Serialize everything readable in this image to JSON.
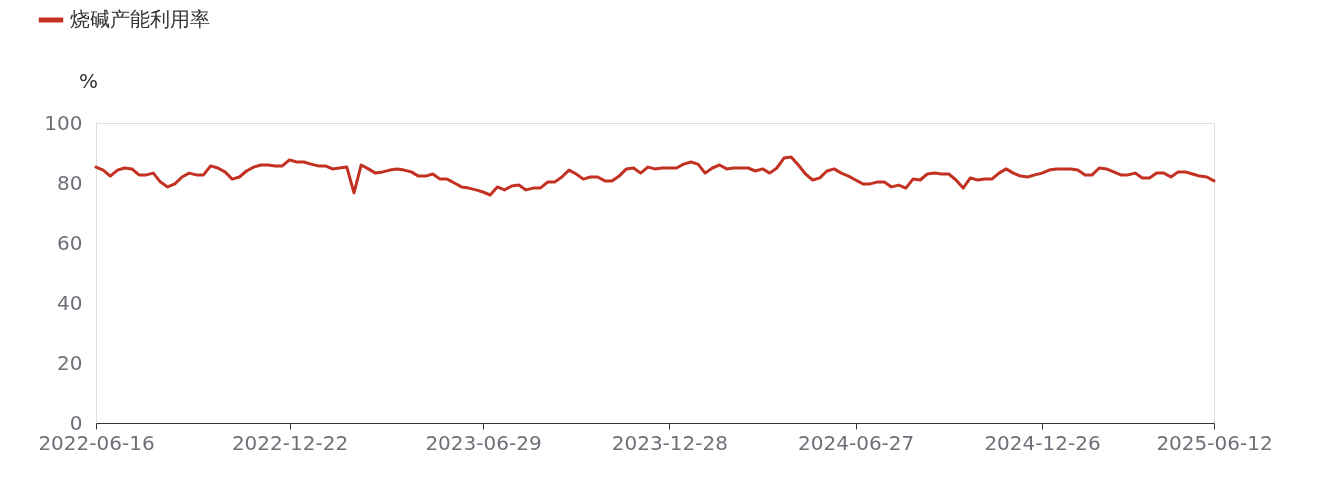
{
  "chart_data": {
    "type": "line",
    "ylabel": "%",
    "legend": "top left",
    "grid": false,
    "marker": "none",
    "line_style": "solid",
    "ylim": [
      0,
      100
    ],
    "yticks": [
      0,
      20,
      40,
      60,
      80,
      100
    ],
    "xlim": [
      "2022-06-16",
      "2025-06-12"
    ],
    "xticks": [
      "2022-06-16",
      "2022-12-22",
      "2023-06-29",
      "2023-12-28",
      "2024-06-27",
      "2024-12-26",
      "2025-06-12"
    ],
    "x": [
      "2022-06-16",
      "2022-06-23",
      "2022-06-30",
      "2022-07-07",
      "2022-07-14",
      "2022-07-21",
      "2022-07-28",
      "2022-08-04",
      "2022-08-11",
      "2022-08-18",
      "2022-08-25",
      "2022-09-01",
      "2022-09-08",
      "2022-09-15",
      "2022-09-22",
      "2022-09-29",
      "2022-10-06",
      "2022-10-13",
      "2022-10-20",
      "2022-10-27",
      "2022-11-03",
      "2022-11-10",
      "2022-11-17",
      "2022-11-24",
      "2022-12-01",
      "2022-12-08",
      "2022-12-15",
      "2022-12-22",
      "2022-12-29",
      "2023-01-05",
      "2023-01-12",
      "2023-01-19",
      "2023-01-26",
      "2023-02-02",
      "2023-02-09",
      "2023-02-16",
      "2023-02-23",
      "2023-03-02",
      "2023-03-09",
      "2023-03-16",
      "2023-03-23",
      "2023-03-30",
      "2023-04-06",
      "2023-04-13",
      "2023-04-20",
      "2023-04-27",
      "2023-05-04",
      "2023-05-11",
      "2023-05-18",
      "2023-05-25",
      "2023-06-01",
      "2023-06-08",
      "2023-06-15",
      "2023-06-22",
      "2023-06-29",
      "2023-07-06",
      "2023-07-13",
      "2023-07-20",
      "2023-07-27",
      "2023-08-03",
      "2023-08-10",
      "2023-08-17",
      "2023-08-24",
      "2023-08-31",
      "2023-09-07",
      "2023-09-14",
      "2023-09-21",
      "2023-09-28",
      "2023-10-05",
      "2023-10-12",
      "2023-10-19",
      "2023-10-26",
      "2023-11-02",
      "2023-11-09",
      "2023-11-16",
      "2023-11-23",
      "2023-11-30",
      "2023-12-07",
      "2023-12-14",
      "2023-12-21",
      "2023-12-28",
      "2024-01-04",
      "2024-01-11",
      "2024-01-18",
      "2024-01-25",
      "2024-02-01",
      "2024-02-08",
      "2024-02-15",
      "2024-02-22",
      "2024-02-29",
      "2024-03-07",
      "2024-03-14",
      "2024-03-21",
      "2024-03-28",
      "2024-04-04",
      "2024-04-11",
      "2024-04-18",
      "2024-04-25",
      "2024-05-02",
      "2024-05-09",
      "2024-05-16",
      "2024-05-23",
      "2024-05-30",
      "2024-06-06",
      "2024-06-13",
      "2024-06-20",
      "2024-06-27",
      "2024-07-04",
      "2024-07-11",
      "2024-07-18",
      "2024-07-25",
      "2024-08-01",
      "2024-08-08",
      "2024-08-15",
      "2024-08-22",
      "2024-08-29",
      "2024-09-05",
      "2024-09-12",
      "2024-09-19",
      "2024-09-26",
      "2024-10-03",
      "2024-10-10",
      "2024-10-17",
      "2024-10-24",
      "2024-10-31",
      "2024-11-07",
      "2024-11-14",
      "2024-11-21",
      "2024-11-28",
      "2024-12-05",
      "2024-12-12",
      "2024-12-19",
      "2024-12-26",
      "2025-01-02",
      "2025-01-09",
      "2025-01-16",
      "2025-01-23",
      "2025-01-30",
      "2025-02-06",
      "2025-02-13",
      "2025-02-20",
      "2025-02-27",
      "2025-03-06",
      "2025-03-13",
      "2025-03-20",
      "2025-03-27",
      "2025-04-03",
      "2025-04-10",
      "2025-04-17",
      "2025-04-24",
      "2025-05-01",
      "2025-05-08",
      "2025-05-15",
      "2025-05-22",
      "2025-05-29",
      "2025-06-05",
      "2025-06-12"
    ],
    "series": [
      {
        "name": "烧碱产能利用率",
        "color": "#c23121",
        "values": [
          85.3,
          84.3,
          82.3,
          84.3,
          85,
          84.7,
          82.7,
          82.7,
          83.3,
          80.3,
          78.7,
          79.7,
          82,
          83.3,
          82.7,
          82.7,
          85.7,
          85,
          83.7,
          81.3,
          82,
          84,
          85.3,
          86,
          86,
          85.7,
          85.7,
          87.7,
          87,
          87,
          86.3,
          85.7,
          85.7,
          84.7,
          85,
          85.3,
          76.7,
          86,
          84.7,
          83.3,
          83.7,
          84.3,
          84.7,
          84.3,
          83.7,
          82.3,
          82.3,
          83,
          81.3,
          81.3,
          80,
          78.7,
          78.3,
          77.7,
          77,
          76,
          78.7,
          77.7,
          79,
          79.3,
          77.7,
          78.3,
          78.3,
          80.3,
          80.3,
          82,
          84.3,
          83,
          81.3,
          82,
          82,
          80.7,
          80.7,
          82.3,
          84.7,
          85,
          83.3,
          85.3,
          84.7,
          85,
          85,
          85,
          86.3,
          87,
          86.3,
          83.3,
          85,
          86,
          84.7,
          85,
          85,
          85,
          84,
          84.7,
          83.3,
          85,
          88.3,
          88.7,
          86,
          83,
          81,
          81.7,
          84,
          84.7,
          83.3,
          82.3,
          81,
          79.7,
          79.7,
          80.3,
          80.3,
          78.7,
          79.3,
          78.3,
          81.3,
          81,
          83,
          83.3,
          83,
          83,
          81,
          78.3,
          81.7,
          81,
          81.3,
          81.3,
          83.3,
          84.7,
          83.3,
          82.3,
          82,
          82.7,
          83.3,
          84.3,
          84.7,
          84.7,
          84.7,
          84.3,
          82.7,
          82.7,
          85,
          84.7,
          83.7,
          82.7,
          82.7,
          83.3,
          81.7,
          81.7,
          83.3,
          83.3,
          82,
          83.7,
          83.7,
          83,
          82.3,
          82,
          80.7
        ]
      }
    ]
  }
}
